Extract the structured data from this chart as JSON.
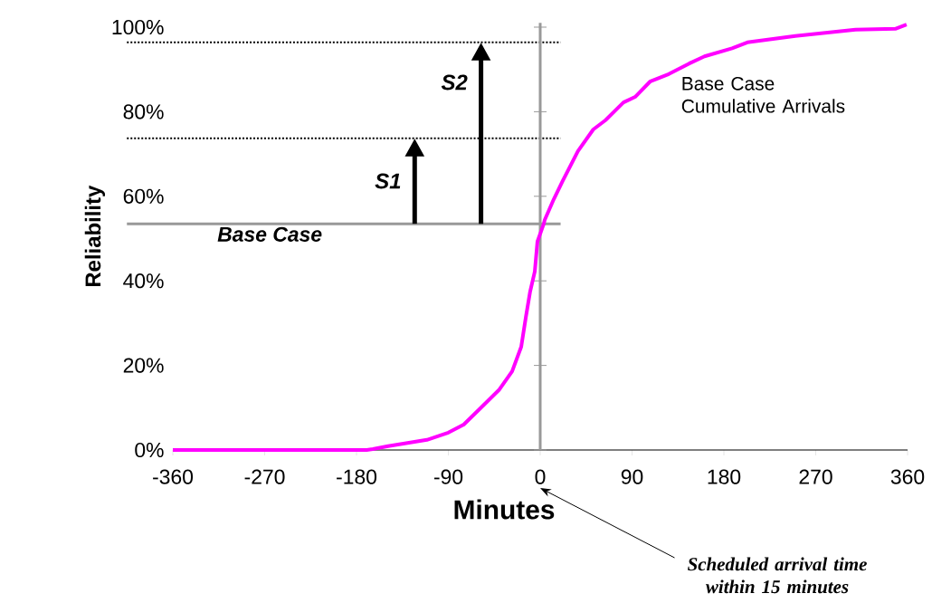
{
  "chart_data": {
    "type": "line",
    "xlabel": "Minutes",
    "ylabel": "Reliability",
    "x": [
      -360,
      -170,
      -164,
      -149,
      -111,
      -90,
      -75,
      -58,
      -40,
      -27.5,
      -18.6,
      -14,
      -10,
      -5.3,
      -2.7,
      3.5,
      4.4,
      13.3,
      22,
      37,
      52,
      64,
      81.6,
      93,
      108,
      126,
      146,
      161,
      188,
      203,
      250,
      309,
      348,
      359
    ],
    "series": [
      {
        "name": "Base Case Cumulative Arrivals",
        "color": "#ff00ff",
        "values": [
          0,
          0,
          0.2,
          0.9,
          2.4,
          4.1,
          6,
          10,
          14.3,
          18.6,
          24.4,
          31.5,
          37.3,
          42.2,
          49.3,
          53.5,
          54.4,
          59.3,
          63.6,
          70.7,
          75.8,
          78,
          82.2,
          83.5,
          87.2,
          88.9,
          91.4,
          93.1,
          95,
          96.4,
          97.9,
          99.4,
          99.6,
          100.6
        ]
      }
    ],
    "xlim": [
      -360,
      360
    ],
    "ylim": [
      0,
      101
    ],
    "xticks": [
      -360,
      -270,
      -180,
      -90,
      0,
      90,
      180,
      270,
      360
    ],
    "yticks": [
      {
        "value": 0,
        "label": "0%"
      },
      {
        "value": 20,
        "label": "20%"
      },
      {
        "value": 40,
        "label": "40%"
      },
      {
        "value": 60,
        "label": "60%"
      },
      {
        "value": 80,
        "label": "80%"
      },
      {
        "value": 100,
        "label": "100%"
      }
    ],
    "ref_lines": [
      {
        "axis": "y",
        "value": 53.5,
        "label": "Base Case",
        "color": "#999999",
        "line_style": "solid"
      },
      {
        "axis": "y",
        "value": 73.7,
        "color": "#000000",
        "line_style": "dotted"
      },
      {
        "axis": "y",
        "value": 96.4,
        "color": "#000000",
        "line_style": "dotted"
      },
      {
        "axis": "x",
        "value": 0,
        "color": "#999999",
        "line_style": "solid"
      }
    ],
    "annotations": [
      {
        "text": "S1",
        "x": -123,
        "y": 73.7
      },
      {
        "text": "S2",
        "x": -58,
        "y": 96.4
      },
      "Scheduled arrival time within 15 minutes"
    ],
    "grid": false,
    "marker": "none",
    "line_style": "solid"
  }
}
